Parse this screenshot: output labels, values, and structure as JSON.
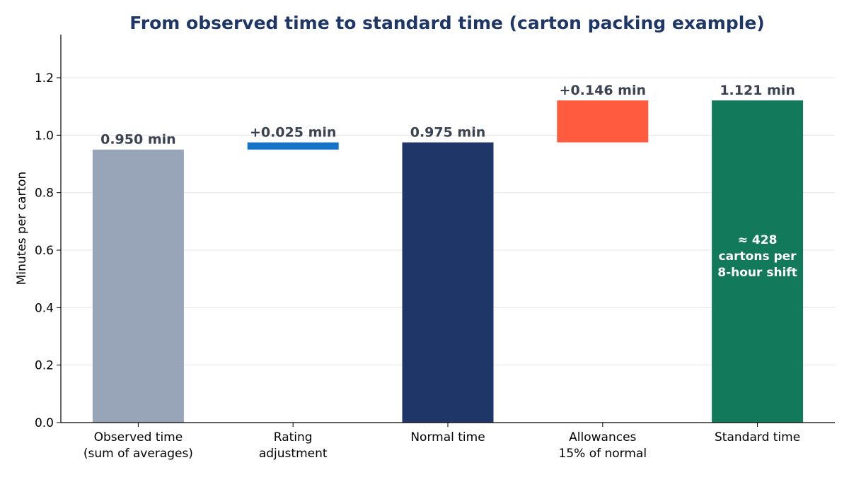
{
  "chart_data": {
    "type": "bar",
    "title": "From observed time to standard time (carton packing example)",
    "xlabel": "",
    "ylabel": "Minutes per carton",
    "ylim": [
      0,
      1.35
    ],
    "yticks": [
      "0.0",
      "0.2",
      "0.4",
      "0.6",
      "0.8",
      "1.0",
      "1.2"
    ],
    "grid": "horizontal",
    "categories": [
      [
        "Observed time",
        "(sum of averages)"
      ],
      [
        "Rating",
        "adjustment"
      ],
      [
        "Normal time"
      ],
      [
        "Allowances",
        "15% of normal"
      ],
      [
        "Standard time"
      ]
    ],
    "bars": [
      {
        "base": 0,
        "top": 0.95,
        "label": "0.950 min",
        "color": "#98a5b8"
      },
      {
        "base": 0.95,
        "top": 0.975,
        "label": "+0.025 min",
        "color": "#1674c8"
      },
      {
        "base": 0,
        "top": 0.975,
        "label": "0.975 min",
        "color": "#1f3768"
      },
      {
        "base": 0.975,
        "top": 1.121,
        "label": "+0.146 min",
        "color": "#ff5c3f"
      },
      {
        "base": 0,
        "top": 1.121,
        "label": "1.121 min",
        "color": "#127a5a"
      }
    ],
    "annotation": {
      "bar_index": 4,
      "lines": [
        "≈ 428",
        "cartons per",
        "8-hour shift"
      ]
    },
    "colors": {
      "title": "#1f3768",
      "value_label": "#3b4252",
      "grid": "#e6e6e6"
    }
  }
}
